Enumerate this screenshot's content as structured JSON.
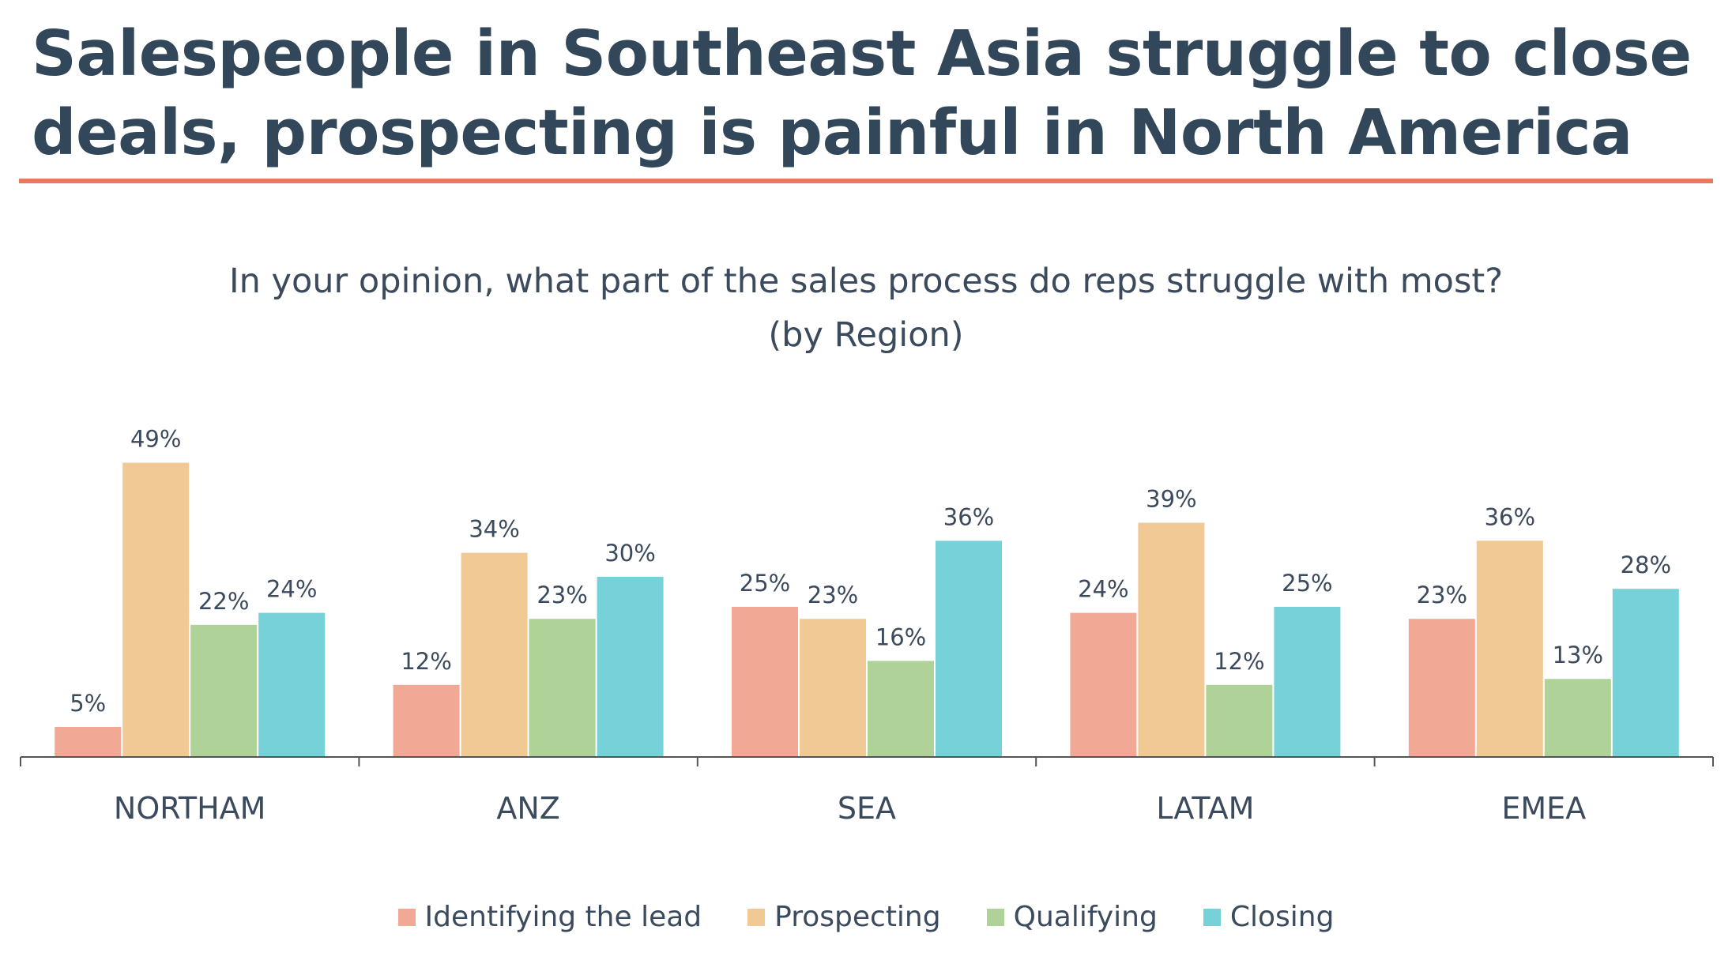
{
  "headline": {
    "line1": "Salespeople in Southeast Asia struggle to close",
    "line2": "deals, prospecting is painful in North America"
  },
  "chart_data": {
    "type": "bar",
    "title_line1": "In your opinion, what part of the sales process do reps struggle with most?",
    "title_line2": "(by Region)",
    "categories": [
      "NORTHAM",
      "ANZ",
      "SEA",
      "LATAM",
      "EMEA"
    ],
    "series": [
      {
        "name": "Identifying the lead",
        "color": "#f1a895",
        "values": [
          5,
          12,
          25,
          24,
          23
        ],
        "labels": [
          "5%",
          "12%",
          "25%",
          "24%",
          "23%"
        ]
      },
      {
        "name": "Prospecting",
        "color": "#f0c994",
        "values": [
          49,
          34,
          23,
          39,
          36
        ],
        "labels": [
          "49%",
          "34%",
          "23%",
          "39%",
          "36%"
        ]
      },
      {
        "name": "Qualifying",
        "color": "#aed297",
        "values": [
          22,
          23,
          16,
          12,
          13
        ],
        "labels": [
          "22%",
          "23%",
          "16%",
          "12%",
          "13%"
        ]
      },
      {
        "name": "Closing",
        "color": "#76d1d8",
        "values": [
          24,
          30,
          36,
          25,
          28
        ],
        "labels": [
          "24%",
          "30%",
          "36%",
          "25%",
          "28%"
        ]
      }
    ],
    "ylim": [
      0,
      50
    ],
    "grid": false,
    "legend_position": "bottom"
  },
  "colors": {
    "headline": "#33475b",
    "rule": "#e8795a",
    "text": "#3b4a5c",
    "axis": "#555555"
  }
}
